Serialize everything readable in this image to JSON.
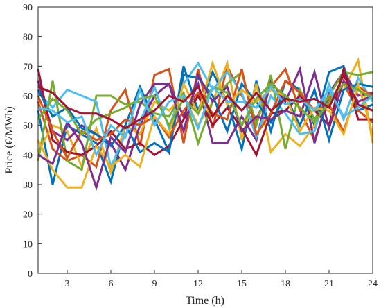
{
  "chart_data": {
    "type": "line",
    "title": "",
    "xlabel": "Time (h)",
    "ylabel": "Price (€/MWh)",
    "xlim": [
      1,
      24
    ],
    "ylim": [
      0,
      90
    ],
    "xticks": [
      3,
      6,
      9,
      12,
      15,
      18,
      21,
      24
    ],
    "yticks": [
      0,
      10,
      20,
      30,
      40,
      50,
      60,
      70,
      80,
      90
    ],
    "grid": false,
    "legend": "none",
    "x": [
      1,
      2,
      3,
      4,
      5,
      6,
      7,
      8,
      9,
      10,
      11,
      12,
      13,
      14,
      15,
      16,
      17,
      18,
      19,
      20,
      21,
      22,
      23,
      24
    ],
    "series": [
      {
        "color": "#0072BD",
        "values": [
          55,
          30,
          50,
          47,
          44,
          31,
          50,
          63,
          52,
          41,
          70,
          55,
          68,
          58,
          42,
          65,
          48,
          65,
          62,
          50,
          68,
          70,
          55,
          57
        ]
      },
      {
        "color": "#D95319",
        "values": [
          58,
          42,
          38,
          40,
          36,
          55,
          62,
          43,
          67,
          69,
          44,
          69,
          49,
          70,
          60,
          52,
          63,
          69,
          55,
          45,
          59,
          64,
          55,
          51
        ]
      },
      {
        "color": "#EDB120",
        "values": [
          41,
          50,
          48,
          36,
          49,
          34,
          50,
          47,
          58,
          55,
          60,
          50,
          58,
          71,
          45,
          64,
          41,
          47,
          43,
          50,
          60,
          62,
          72,
          44
        ]
      },
      {
        "color": "#7E2F8E",
        "values": [
          65,
          48,
          45,
          50,
          47,
          44,
          35,
          50,
          60,
          64,
          53,
          64,
          44,
          44,
          53,
          45,
          65,
          58,
          69,
          44,
          61,
          68,
          60,
          61
        ]
      },
      {
        "color": "#77AC30",
        "values": [
          38,
          65,
          38,
          35,
          60,
          60,
          57,
          58,
          54,
          53,
          61,
          44,
          58,
          64,
          68,
          50,
          67,
          42,
          62,
          52,
          60,
          68,
          67,
          68
        ]
      },
      {
        "color": "#4DBEEE",
        "values": [
          61,
          56,
          62,
          60,
          58,
          36,
          47,
          51,
          63,
          49,
          64,
          71,
          62,
          68,
          61,
          46,
          60,
          54,
          47,
          48,
          64,
          52,
          66,
          58
        ]
      },
      {
        "color": "#A2142F",
        "values": [
          69,
          45,
          41,
          40,
          43,
          48,
          42,
          44,
          40,
          43,
          52,
          60,
          50,
          56,
          49,
          40,
          54,
          55,
          60,
          55,
          50,
          69,
          52,
          52
        ]
      },
      {
        "color": "#0072BD",
        "values": [
          62,
          53,
          56,
          49,
          47,
          43,
          50,
          41,
          44,
          41,
          67,
          66,
          60,
          48,
          64,
          58,
          51,
          60,
          50,
          62,
          45,
          62,
          64,
          63
        ]
      },
      {
        "color": "#D95319",
        "values": [
          60,
          48,
          39,
          48,
          45,
          47,
          52,
          50,
          53,
          46,
          55,
          61,
          54,
          52,
          69,
          47,
          54,
          65,
          61,
          55,
          57,
          48,
          63,
          60
        ]
      },
      {
        "color": "#EDB120",
        "values": [
          45,
          35,
          29,
          29,
          43,
          36,
          40,
          36,
          53,
          47,
          64,
          54,
          71,
          57,
          62,
          58,
          62,
          60,
          48,
          56,
          55,
          47,
          64,
          47
        ]
      },
      {
        "color": "#7E2F8E",
        "values": [
          40,
          37,
          51,
          44,
          29,
          46,
          41,
          57,
          64,
          64,
          48,
          67,
          58,
          63,
          48,
          53,
          52,
          55,
          53,
          68,
          49,
          65,
          58,
          60
        ]
      },
      {
        "color": "#77AC30",
        "values": [
          52,
          59,
          55,
          47,
          52,
          54,
          56,
          59,
          60,
          50,
          59,
          54,
          63,
          61,
          50,
          59,
          64,
          60,
          56,
          51,
          58,
          64,
          62,
          59
        ]
      },
      {
        "color": "#4DBEEE",
        "values": [
          56,
          55,
          51,
          53,
          40,
          50,
          46,
          62,
          50,
          58,
          60,
          49,
          63,
          58,
          58,
          56,
          63,
          57,
          59,
          55,
          62,
          53,
          56,
          60
        ]
      },
      {
        "color": "#A2142F",
        "values": [
          63,
          61,
          56,
          54,
          54,
          52,
          49,
          52,
          55,
          60,
          58,
          63,
          53,
          60,
          55,
          61,
          55,
          59,
          58,
          59,
          56,
          67,
          57,
          55
        ]
      }
    ]
  }
}
